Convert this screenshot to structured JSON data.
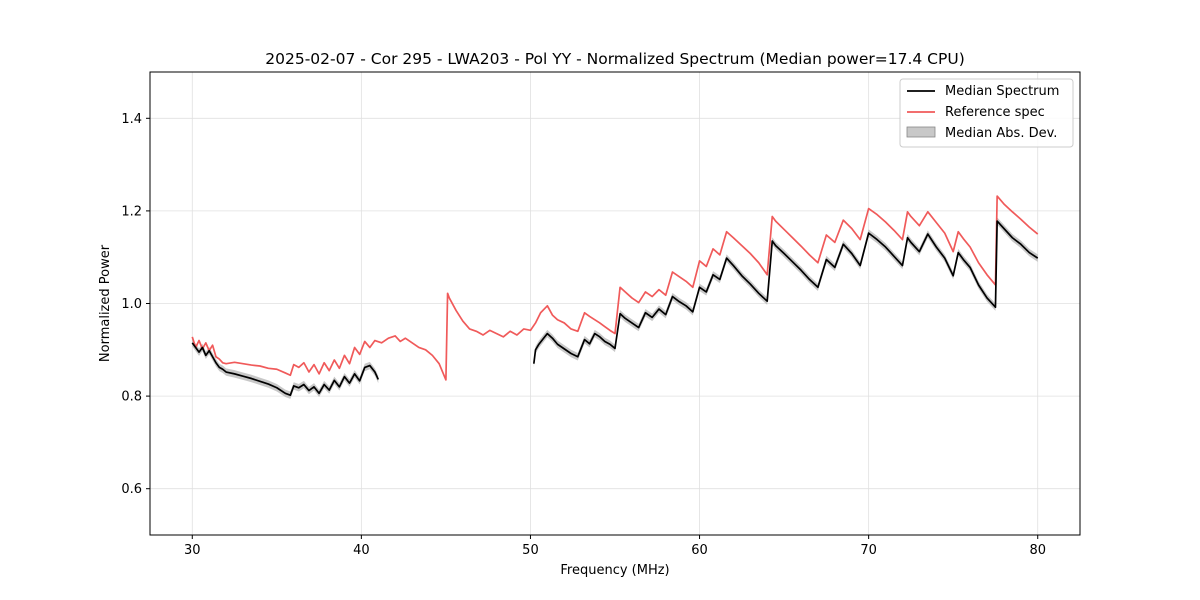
{
  "chart_data": {
    "type": "line",
    "title": "2025-02-07 - Cor 295 - LWA203 - Pol YY - Normalized Spectrum (Median power=17.4 CPU)",
    "xlabel": "Frequency (MHz)",
    "ylabel": "Normalized Power",
    "xlim": [
      27.5,
      82.5
    ],
    "ylim": [
      0.5,
      1.5
    ],
    "xticks": [
      30,
      40,
      50,
      60,
      70,
      80
    ],
    "yticks": [
      0.6,
      0.8,
      1.0,
      1.2,
      1.4
    ],
    "xtick_labels": [
      "30",
      "40",
      "50",
      "60",
      "70",
      "80"
    ],
    "ytick_labels": [
      "0.6",
      "0.8",
      "1.0",
      "1.2",
      "1.4"
    ],
    "grid": true,
    "legend_position": "top-right",
    "colors": {
      "median": "#000000",
      "reference": "#f05a5a",
      "mad_fill": "#b0b0b0"
    },
    "series": [
      {
        "name": "Median Spectrum",
        "segments": [
          {
            "x": [
              30.0,
              30.2,
              30.4,
              30.6,
              30.8,
              31.0,
              31.2,
              31.4,
              31.6,
              31.8,
              32.0,
              32.5,
              33.0,
              33.5,
              34.0,
              34.5,
              35.0,
              35.5,
              35.8,
              36.0,
              36.3,
              36.6,
              36.9,
              37.2,
              37.5,
              37.8,
              38.1,
              38.4,
              38.7,
              39.0,
              39.3,
              39.6,
              39.9,
              40.2,
              40.5,
              40.8,
              41.0
            ],
            "y": [
              0.915,
              0.905,
              0.895,
              0.905,
              0.888,
              0.898,
              0.885,
              0.872,
              0.862,
              0.858,
              0.852,
              0.848,
              0.843,
              0.838,
              0.832,
              0.826,
              0.818,
              0.806,
              0.802,
              0.822,
              0.818,
              0.825,
              0.812,
              0.82,
              0.806,
              0.825,
              0.813,
              0.834,
              0.82,
              0.842,
              0.828,
              0.848,
              0.833,
              0.862,
              0.866,
              0.852,
              0.836
            ]
          },
          {
            "x": [
              50.2,
              50.3,
              50.5,
              50.8,
              51.0,
              51.3,
              51.6,
              52.0,
              52.4,
              52.8,
              53.2,
              53.5,
              53.8,
              54.1,
              54.4,
              54.7,
              55.0,
              55.3,
              55.6,
              56.0,
              56.4,
              56.8,
              57.2,
              57.6,
              58.0,
              58.4,
              58.8,
              59.2,
              59.6,
              60.0,
              60.4,
              60.8,
              61.2,
              61.6,
              62.0,
              62.5,
              63.0,
              63.5,
              64.0,
              64.3,
              64.5,
              65.0,
              65.5,
              66.0,
              66.5,
              67.0,
              67.5,
              68.0,
              68.5,
              69.0,
              69.5,
              70.0,
              70.5,
              71.0,
              71.5,
              72.0,
              72.3,
              72.5,
              73.0,
              73.5,
              74.0,
              74.5,
              75.0,
              75.3,
              75.6,
              76.0,
              76.5,
              77.0,
              77.5,
              77.6,
              78.0,
              78.5,
              79.0,
              79.5,
              80.0
            ],
            "y": [
              0.87,
              0.9,
              0.912,
              0.926,
              0.935,
              0.925,
              0.912,
              0.902,
              0.892,
              0.885,
              0.922,
              0.913,
              0.935,
              0.928,
              0.918,
              0.912,
              0.903,
              0.978,
              0.968,
              0.958,
              0.948,
              0.98,
              0.97,
              0.988,
              0.976,
              1.015,
              1.004,
              0.995,
              0.982,
              1.035,
              1.025,
              1.062,
              1.052,
              1.098,
              1.082,
              1.06,
              1.042,
              1.022,
              1.005,
              1.135,
              1.125,
              1.108,
              1.09,
              1.072,
              1.052,
              1.035,
              1.095,
              1.078,
              1.128,
              1.108,
              1.082,
              1.152,
              1.138,
              1.122,
              1.102,
              1.082,
              1.142,
              1.132,
              1.112,
              1.15,
              1.122,
              1.098,
              1.06,
              1.11,
              1.095,
              1.078,
              1.04,
              1.012,
              0.992,
              1.178,
              1.162,
              1.142,
              1.128,
              1.11,
              1.098
            ]
          }
        ]
      },
      {
        "name": "Reference spec",
        "segments": [
          {
            "x": [
              30.0,
              30.2,
              30.4,
              30.6,
              30.8,
              31.0,
              31.2,
              31.4,
              31.6,
              31.8,
              32.0,
              32.5,
              33.0,
              33.5,
              34.0,
              34.5,
              35.0,
              35.5,
              35.8,
              36.0,
              36.3,
              36.6,
              36.9,
              37.2,
              37.5,
              37.8,
              38.1,
              38.4,
              38.7,
              39.0,
              39.3,
              39.6,
              39.9,
              40.2,
              40.5,
              40.8,
              41.2,
              41.6,
              42.0,
              42.3,
              42.6,
              43.0,
              43.4,
              43.8,
              44.2,
              44.6,
              45.0,
              45.1,
              45.2,
              45.6,
              46.0,
              46.4,
              46.8,
              47.2,
              47.6,
              48.0,
              48.4,
              48.8,
              49.2,
              49.6,
              50.0,
              50.3,
              50.6,
              51.0,
              51.3,
              51.6,
              52.0,
              52.4,
              52.8,
              53.2,
              53.5,
              53.8,
              54.1,
              54.4,
              54.7,
              55.0,
              55.3,
              55.6,
              56.0,
              56.4,
              56.8,
              57.2,
              57.6,
              58.0,
              58.4,
              58.8,
              59.2,
              59.6,
              60.0,
              60.4,
              60.8,
              61.2,
              61.6,
              62.0,
              62.5,
              63.0,
              63.5,
              64.0,
              64.3,
              64.5,
              65.0,
              65.5,
              66.0,
              66.5,
              67.0,
              67.5,
              68.0,
              68.5,
              69.0,
              69.5,
              70.0,
              70.5,
              71.0,
              71.5,
              72.0,
              72.3,
              72.5,
              73.0,
              73.5,
              74.0,
              74.5,
              75.0,
              75.3,
              75.6,
              76.0,
              76.5,
              77.0,
              77.5,
              77.6,
              78.0,
              78.5,
              79.0,
              79.5,
              80.0
            ],
            "y": [
              0.928,
              0.905,
              0.92,
              0.902,
              0.915,
              0.898,
              0.91,
              0.885,
              0.88,
              0.872,
              0.87,
              0.873,
              0.87,
              0.867,
              0.865,
              0.86,
              0.858,
              0.85,
              0.845,
              0.868,
              0.862,
              0.872,
              0.852,
              0.868,
              0.848,
              0.872,
              0.855,
              0.878,
              0.86,
              0.888,
              0.87,
              0.905,
              0.89,
              0.918,
              0.905,
              0.92,
              0.915,
              0.925,
              0.93,
              0.918,
              0.925,
              0.915,
              0.905,
              0.9,
              0.888,
              0.87,
              0.835,
              1.022,
              1.012,
              0.985,
              0.962,
              0.945,
              0.94,
              0.932,
              0.942,
              0.935,
              0.928,
              0.94,
              0.932,
              0.945,
              0.942,
              0.958,
              0.98,
              0.995,
              0.975,
              0.965,
              0.958,
              0.945,
              0.94,
              0.98,
              0.972,
              0.965,
              0.958,
              0.95,
              0.942,
              0.935,
              1.035,
              1.025,
              1.012,
              1.002,
              1.025,
              1.015,
              1.03,
              1.018,
              1.068,
              1.058,
              1.048,
              1.035,
              1.092,
              1.08,
              1.118,
              1.105,
              1.155,
              1.142,
              1.125,
              1.108,
              1.088,
              1.062,
              1.188,
              1.178,
              1.16,
              1.142,
              1.124,
              1.105,
              1.088,
              1.148,
              1.132,
              1.18,
              1.162,
              1.138,
              1.205,
              1.192,
              1.176,
              1.158,
              1.138,
              1.198,
              1.188,
              1.168,
              1.198,
              1.175,
              1.152,
              1.112,
              1.155,
              1.14,
              1.122,
              1.088,
              1.062,
              1.04,
              1.232,
              1.215,
              1.198,
              1.182,
              1.165,
              1.15
            ]
          }
        ]
      }
    ],
    "band": {
      "name": "Median Abs. Dev.",
      "half_width": 0.008
    }
  }
}
